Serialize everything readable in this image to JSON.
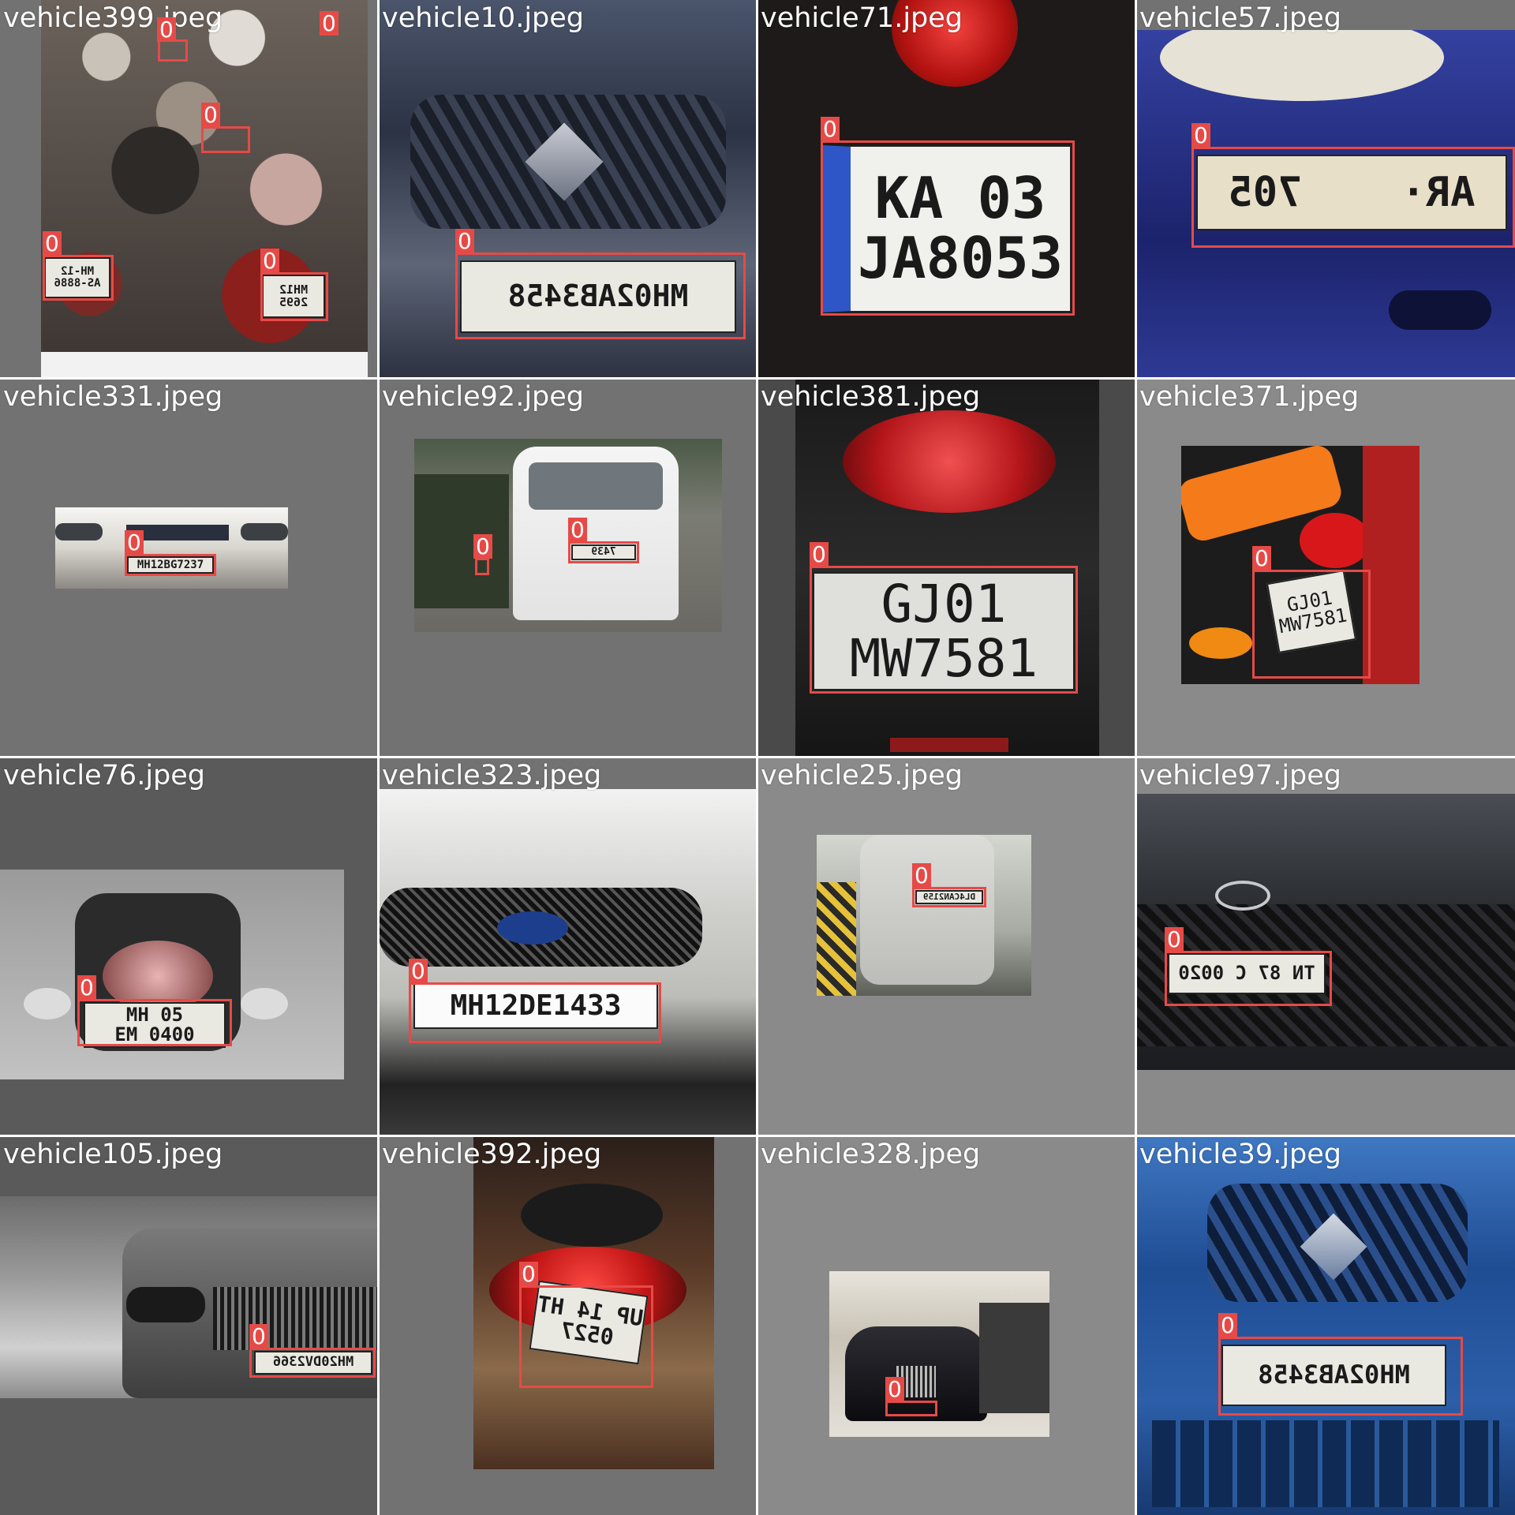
{
  "grid": {
    "tiles": [
      {
        "filename": "vehicle399.jpeg",
        "class_labels": [
          "0",
          "0",
          "0",
          "0",
          "0"
        ],
        "plates": [
          "MH-12\nAS-8886",
          "MH12\n2695"
        ]
      },
      {
        "filename": "vehicle10.jpeg",
        "class_labels": [
          "0"
        ],
        "plates": [
          "MH02AB3458"
        ]
      },
      {
        "filename": "vehicle71.jpeg",
        "class_labels": [
          "0"
        ],
        "plates": [
          "KA 03\nJA8053"
        ]
      },
      {
        "filename": "vehicle57.jpeg",
        "class_labels": [
          "0"
        ],
        "plates": [
          "AR·    705"
        ]
      },
      {
        "filename": "vehicle331.jpeg",
        "class_labels": [
          "0"
        ],
        "plates": [
          "MH12BG7237"
        ]
      },
      {
        "filename": "vehicle92.jpeg",
        "class_labels": [
          "0",
          "0"
        ],
        "plates": [
          "7439"
        ]
      },
      {
        "filename": "vehicle381.jpeg",
        "class_labels": [
          "0"
        ],
        "plates": [
          "GJ01\nMW7581"
        ]
      },
      {
        "filename": "vehicle371.jpeg",
        "class_labels": [
          "0"
        ],
        "plates": [
          "GJ01\nMW7581"
        ]
      },
      {
        "filename": "vehicle76.jpeg",
        "class_labels": [
          "0"
        ],
        "plates": [
          "MH 05\nEM 0400"
        ]
      },
      {
        "filename": "vehicle323.jpeg",
        "class_labels": [
          "0"
        ],
        "plates": [
          "MH12DE1433"
        ]
      },
      {
        "filename": "vehicle25.jpeg",
        "class_labels": [
          "0"
        ],
        "plates": [
          "DL4CAN2159"
        ]
      },
      {
        "filename": "vehicle97.jpeg",
        "class_labels": [
          "0"
        ],
        "plates": [
          "TN 87 C 0020"
        ]
      },
      {
        "filename": "vehicle105.jpeg",
        "class_labels": [
          "0"
        ],
        "plates": [
          "MH20DV2366"
        ]
      },
      {
        "filename": "vehicle392.jpeg",
        "class_labels": [
          "0"
        ],
        "plates": [
          "UP 14 HT\n0527"
        ]
      },
      {
        "filename": "vehicle328.jpeg",
        "class_labels": [
          "0"
        ],
        "plates": []
      },
      {
        "filename": "vehicle39.jpeg",
        "class_labels": [
          "0"
        ],
        "plates": [
          "MH02AB3458"
        ]
      }
    ]
  },
  "colors": {
    "box": "#e64a47",
    "label_text": "#ffffff",
    "filename_text": "#ffffff",
    "pad": "#727272"
  }
}
